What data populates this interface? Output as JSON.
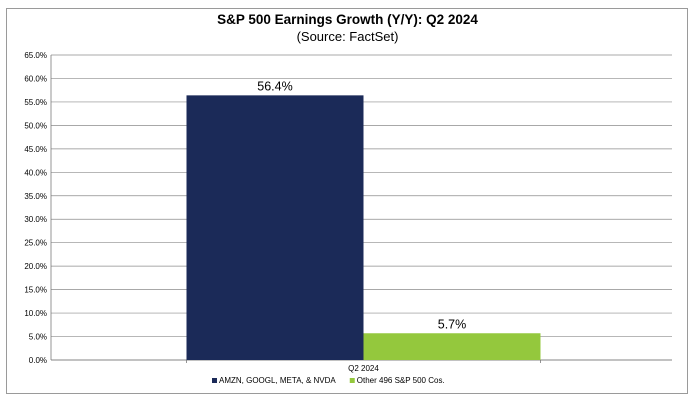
{
  "chart_data": {
    "type": "bar",
    "title": "S&P 500 Earnings Growth (Y/Y): Q2 2024",
    "subtitle": "(Source: FactSet)",
    "categories": [
      "Q2 2024"
    ],
    "series": [
      {
        "name": "AMZN, GOOGL, META, & NVDA",
        "values": [
          56.4
        ],
        "label": "56.4%",
        "color": "#1b2a58"
      },
      {
        "name": "Other 496 S&P 500 Cos.",
        "values": [
          5.7
        ],
        "label": "5.7%",
        "color": "#94c83d"
      }
    ],
    "ylim": [
      0,
      65
    ],
    "yticks": [
      "0.0%",
      "5.0%",
      "10.0%",
      "15.0%",
      "20.0%",
      "25.0%",
      "30.0%",
      "35.0%",
      "40.0%",
      "45.0%",
      "50.0%",
      "55.0%",
      "60.0%",
      "65.0%"
    ],
    "ytick_values": [
      0,
      5,
      10,
      15,
      20,
      25,
      30,
      35,
      40,
      45,
      50,
      55,
      60,
      65
    ],
    "grid": true,
    "legend_position": "bottom",
    "xlabel": "",
    "ylabel": ""
  }
}
